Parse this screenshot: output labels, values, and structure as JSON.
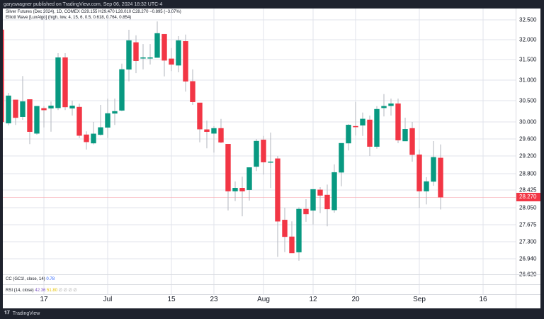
{
  "header": {
    "published": "garyswagner published on TradingView.com, Sep 06, 2024 18:32 UTC-4"
  },
  "legend": {
    "symbol": "Silver Futures (Dec 2024), 1D, COMEX  O29.155  H29.470  L28.010  C28.270  −0.895 (−3.07%)",
    "indicator": "Elliott Wave [LuxAlgo] (high, low, 4, 15, 6, 0.5, 0.618, 0.764, 0.854)"
  },
  "cc_pane": {
    "label": "CC (GC1!, close, 14)",
    "value": "0.78"
  },
  "rsi_pane": {
    "label": "RSI (14, close)",
    "value1": "42.36",
    "value2": "51.80",
    "extras": "∅ ∅ ∅ ∅"
  },
  "price_axis": {
    "ticks": [
      "32.500",
      "32.000",
      "31.500",
      "31.000",
      "30.500",
      "30.000",
      "29.600",
      "29.200",
      "28.800",
      "28.425",
      "28.050",
      "27.675",
      "27.300",
      "26.940",
      "26.620"
    ],
    "last_price": "28.270"
  },
  "time_axis": {
    "labels": [
      {
        "text": "17",
        "index": 6
      },
      {
        "text": "Jul",
        "index": 15
      },
      {
        "text": "15",
        "index": 24
      },
      {
        "text": "23",
        "index": 30
      },
      {
        "text": "Aug",
        "index": 37
      },
      {
        "text": "12",
        "index": 44
      },
      {
        "text": "20",
        "index": 50
      },
      {
        "text": "Sep",
        "index": 59
      },
      {
        "text": "16",
        "index": 68
      }
    ]
  },
  "brand": "TradingView",
  "colors": {
    "up": "#089981",
    "down": "#f23645",
    "grid": "#e0e3eb"
  },
  "chart_data": {
    "type": "candlestick",
    "scale": "price",
    "ohlc": [
      [
        32.25,
        32.25,
        30.0,
        30.0
      ],
      [
        29.97,
        30.69,
        29.92,
        30.62
      ],
      [
        30.52,
        30.52,
        29.93,
        30.1
      ],
      [
        30.12,
        31.1,
        30.05,
        30.48
      ],
      [
        30.53,
        30.53,
        29.48,
        29.77
      ],
      [
        29.73,
        30.37,
        29.7,
        30.37
      ],
      [
        30.32,
        30.37,
        29.87,
        30.28
      ],
      [
        30.32,
        30.48,
        29.77,
        30.38
      ],
      [
        30.33,
        31.66,
        30.28,
        31.55
      ],
      [
        31.55,
        31.66,
        30.28,
        30.35
      ],
      [
        30.32,
        30.5,
        30.15,
        30.38
      ],
      [
        30.35,
        30.43,
        29.62,
        29.68
      ],
      [
        29.7,
        29.78,
        29.35,
        29.53
      ],
      [
        29.5,
        30.0,
        29.47,
        29.72
      ],
      [
        29.7,
        30.4,
        29.68,
        29.87
      ],
      [
        29.87,
        30.55,
        29.62,
        30.2
      ],
      [
        30.2,
        30.55,
        29.93,
        30.25
      ],
      [
        30.27,
        31.4,
        30.25,
        31.26
      ],
      [
        31.26,
        32.25,
        30.97,
        31.98
      ],
      [
        31.93,
        32.11,
        31.17,
        31.47
      ],
      [
        31.54,
        31.89,
        31.26,
        31.55
      ],
      [
        31.54,
        31.89,
        31.38,
        31.55
      ],
      [
        31.55,
        32.46,
        31.55,
        32.16
      ],
      [
        32.14,
        32.14,
        31.09,
        31.48
      ],
      [
        31.52,
        31.79,
        31.22,
        31.38
      ],
      [
        31.36,
        32.09,
        31.19,
        31.98
      ],
      [
        31.96,
        32.13,
        30.72,
        30.97
      ],
      [
        30.97,
        31.26,
        30.4,
        30.47
      ],
      [
        30.45,
        30.45,
        29.52,
        29.83
      ],
      [
        29.82,
        30.03,
        29.38,
        29.77
      ],
      [
        29.73,
        29.9,
        29.28,
        29.85
      ],
      [
        29.85,
        30.07,
        29.5,
        29.52
      ],
      [
        29.48,
        29.48,
        27.99,
        28.4
      ],
      [
        28.4,
        28.62,
        28.19,
        28.47
      ],
      [
        28.47,
        28.73,
        27.86,
        28.4
      ],
      [
        28.43,
        28.94,
        28.2,
        28.94
      ],
      [
        28.96,
        29.6,
        28.86,
        29.55
      ],
      [
        29.58,
        29.67,
        28.78,
        29.06
      ],
      [
        29.06,
        29.75,
        28.47,
        29.07
      ],
      [
        29.14,
        29.2,
        26.98,
        27.75
      ],
      [
        27.78,
        28.05,
        27.08,
        27.41
      ],
      [
        27.41,
        27.75,
        27.06,
        27.06
      ],
      [
        27.08,
        28.06,
        26.9,
        28.02
      ],
      [
        28.02,
        28.23,
        27.74,
        27.91
      ],
      [
        27.99,
        28.44,
        27.68,
        28.44
      ],
      [
        28.43,
        28.49,
        27.93,
        28.31
      ],
      [
        28.32,
        28.55,
        27.64,
        28.02
      ],
      [
        28.0,
        29.01,
        27.94,
        28.83
      ],
      [
        28.83,
        29.5,
        28.51,
        29.5
      ],
      [
        29.5,
        29.95,
        29.33,
        29.93
      ],
      [
        29.9,
        30.47,
        29.68,
        29.88
      ],
      [
        29.92,
        30.22,
        29.67,
        30.07
      ],
      [
        30.05,
        30.15,
        29.2,
        29.42
      ],
      [
        29.42,
        30.37,
        29.37,
        30.3
      ],
      [
        30.33,
        30.66,
        30.13,
        30.37
      ],
      [
        30.38,
        30.55,
        30.15,
        30.43
      ],
      [
        30.43,
        30.55,
        29.5,
        29.57
      ],
      [
        29.55,
        30.1,
        29.55,
        29.83
      ],
      [
        29.85,
        30.0,
        29.07,
        29.23
      ],
      [
        29.23,
        29.35,
        28.05,
        28.4
      ],
      [
        28.4,
        28.72,
        28.12,
        28.62
      ],
      [
        28.62,
        29.55,
        28.52,
        29.17
      ],
      [
        29.155,
        29.47,
        28.01,
        28.27
      ]
    ],
    "ohlc_order": [
      "open",
      "high",
      "low",
      "close"
    ],
    "y_range": [
      26.62,
      32.5
    ]
  }
}
